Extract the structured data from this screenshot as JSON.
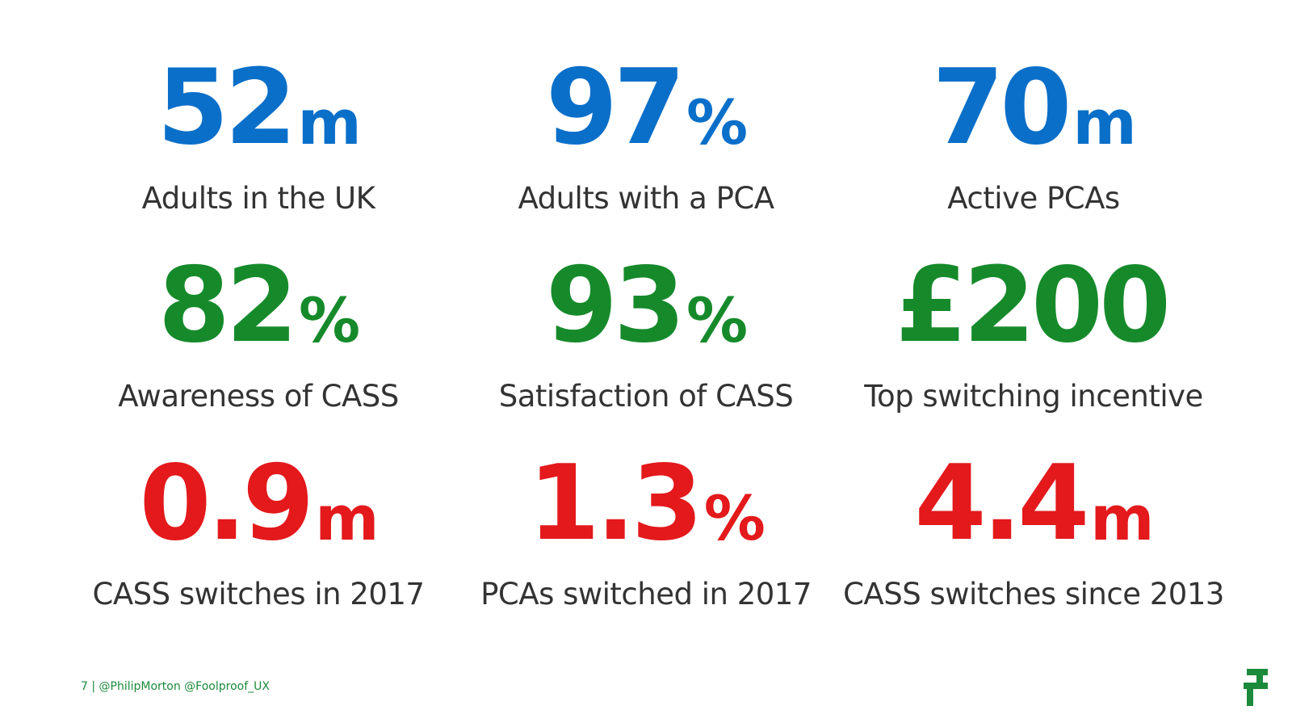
{
  "colors": {
    "blue": "#0a6fc9",
    "green": "#168a2b",
    "red": "#e3191c",
    "label": "#333333",
    "footer": "#1b8a3b",
    "logo": "#1b8a3b"
  },
  "stats": [
    {
      "value": "52",
      "unit": "m",
      "label": "Adults in the UK",
      "color": "#0a6fc9"
    },
    {
      "value": "97",
      "unit": "%",
      "label": "Adults with a PCA",
      "color": "#0a6fc9"
    },
    {
      "value": "70",
      "unit": "m",
      "label": "Active PCAs",
      "color": "#0a6fc9"
    },
    {
      "value": "82",
      "unit": "%",
      "label": "Awareness of CASS",
      "color": "#168a2b"
    },
    {
      "value": "93",
      "unit": "%",
      "label": "Satisfaction of CASS",
      "color": "#168a2b"
    },
    {
      "value": "£200",
      "unit": "",
      "label": "Top switching incentive",
      "color": "#168a2b"
    },
    {
      "value": "0.9",
      "unit": "m",
      "label": "CASS switches in 2017",
      "color": "#e3191c"
    },
    {
      "value": "1.3",
      "unit": "%",
      "label": "PCAs switched in 2017",
      "color": "#e3191c"
    },
    {
      "value": "4.4",
      "unit": "m",
      "label": "CASS switches since 2013",
      "color": "#e3191c"
    }
  ],
  "footer": {
    "text": "7 | @PhilipMorton @Foolproof_UX"
  },
  "logo": {
    "icon": "foolproof-logo-icon"
  }
}
